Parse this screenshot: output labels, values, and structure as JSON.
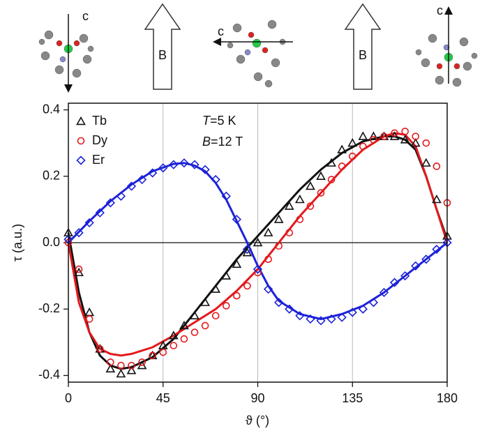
{
  "chart_data": {
    "type": "scatter",
    "xlabel": "ϑ (°)",
    "ylabel": "τ (a.u.)",
    "xlim": [
      0,
      180
    ],
    "ylim": [
      -0.42,
      0.42
    ],
    "xticks": [
      0,
      45,
      90,
      135,
      180
    ],
    "yticks": [
      -0.4,
      -0.2,
      {
        "value": 0,
        "label": "0.0"
      },
      0.2,
      0.4
    ],
    "xgrid": [
      45,
      90,
      135
    ],
    "zero_line": true,
    "legend": "upper left",
    "annotations": [
      {
        "symbol": "T",
        "text": "=5 K"
      },
      {
        "symbol": "B",
        "text": "=12 T"
      }
    ],
    "illustration_labels": [
      "c",
      "B",
      "c",
      "B",
      "c"
    ],
    "series": [
      {
        "name": "Tb",
        "color": "#111111",
        "marker": "triangle",
        "x": [
          0,
          5,
          10,
          15,
          20,
          25,
          30,
          35,
          40,
          45,
          50,
          55,
          60,
          65,
          70,
          75,
          80,
          85,
          90,
          95,
          100,
          105,
          110,
          115,
          120,
          125,
          130,
          135,
          140,
          145,
          150,
          155,
          160,
          165,
          170,
          175,
          180
        ],
        "values": [
          0.03,
          -0.09,
          -0.21,
          -0.32,
          -0.38,
          -0.395,
          -0.385,
          -0.37,
          -0.34,
          -0.31,
          -0.28,
          -0.25,
          -0.22,
          -0.18,
          -0.14,
          -0.1,
          -0.065,
          -0.03,
          0.0,
          0.03,
          0.07,
          0.11,
          0.13,
          0.17,
          0.2,
          0.24,
          0.28,
          0.3,
          0.32,
          0.32,
          0.32,
          0.32,
          0.31,
          0.3,
          0.24,
          0.13,
          0.02
        ],
        "fit": {
          "x": [
            0,
            5,
            10,
            15,
            20,
            25,
            30,
            40,
            50,
            60,
            70,
            80,
            90,
            100,
            110,
            120,
            130,
            140,
            150,
            155,
            160,
            165,
            170,
            175,
            180
          ],
          "values": [
            0.03,
            -0.15,
            -0.27,
            -0.34,
            -0.37,
            -0.38,
            -0.375,
            -0.345,
            -0.29,
            -0.21,
            -0.13,
            -0.05,
            0.02,
            0.09,
            0.16,
            0.22,
            0.27,
            0.305,
            0.32,
            0.32,
            0.31,
            0.28,
            0.2,
            0.1,
            0.01
          ]
        }
      },
      {
        "name": "Dy",
        "color": "#e3191c",
        "marker": "circle",
        "x": [
          0,
          5,
          10,
          15,
          20,
          25,
          30,
          35,
          40,
          45,
          50,
          55,
          60,
          65,
          70,
          75,
          80,
          85,
          90,
          95,
          100,
          105,
          110,
          115,
          120,
          125,
          130,
          135,
          140,
          145,
          150,
          155,
          160,
          165,
          170,
          175,
          180
        ],
        "values": [
          0.0,
          -0.08,
          -0.23,
          -0.32,
          -0.36,
          -0.37,
          -0.37,
          -0.36,
          -0.34,
          -0.33,
          -0.31,
          -0.29,
          -0.27,
          -0.25,
          -0.22,
          -0.19,
          -0.16,
          -0.13,
          -0.09,
          -0.05,
          -0.01,
          0.03,
          0.07,
          0.11,
          0.15,
          0.19,
          0.23,
          0.26,
          0.29,
          0.31,
          0.32,
          0.33,
          0.335,
          0.32,
          0.3,
          0.23,
          0.12
        ],
        "fit": {
          "x": [
            0,
            5,
            10,
            15,
            20,
            25,
            30,
            40,
            50,
            60,
            70,
            80,
            90,
            100,
            110,
            120,
            130,
            140,
            150,
            155,
            160,
            165,
            170,
            175,
            180
          ],
          "values": [
            0.0,
            -0.18,
            -0.27,
            -0.32,
            -0.335,
            -0.34,
            -0.335,
            -0.315,
            -0.28,
            -0.24,
            -0.2,
            -0.145,
            -0.08,
            0.0,
            0.08,
            0.15,
            0.22,
            0.28,
            0.32,
            0.33,
            0.325,
            0.29,
            0.2,
            0.1,
            0.0
          ]
        }
      },
      {
        "name": "Er",
        "color": "#1c22d8",
        "marker": "diamond",
        "x": [
          0,
          5,
          10,
          15,
          20,
          25,
          30,
          35,
          40,
          45,
          50,
          55,
          60,
          65,
          70,
          75,
          80,
          85,
          90,
          95,
          100,
          105,
          110,
          115,
          120,
          125,
          130,
          135,
          140,
          145,
          150,
          155,
          160,
          165,
          170,
          175,
          180
        ],
        "values": [
          0.01,
          0.03,
          0.06,
          0.09,
          0.12,
          0.14,
          0.17,
          0.19,
          0.21,
          0.225,
          0.235,
          0.24,
          0.235,
          0.22,
          0.19,
          0.14,
          0.07,
          -0.02,
          -0.08,
          -0.14,
          -0.18,
          -0.2,
          -0.22,
          -0.23,
          -0.235,
          -0.23,
          -0.225,
          -0.21,
          -0.2,
          -0.18,
          -0.15,
          -0.12,
          -0.1,
          -0.07,
          -0.05,
          -0.02,
          0.0
        ],
        "fit": {
          "x": [
            0,
            10,
            20,
            30,
            40,
            50,
            55,
            60,
            65,
            70,
            75,
            80,
            85,
            90,
            95,
            100,
            110,
            120,
            130,
            140,
            150,
            160,
            170,
            180
          ],
          "values": [
            0.0,
            0.065,
            0.125,
            0.175,
            0.215,
            0.237,
            0.24,
            0.232,
            0.215,
            0.18,
            0.13,
            0.065,
            0.0,
            -0.07,
            -0.13,
            -0.175,
            -0.215,
            -0.23,
            -0.215,
            -0.19,
            -0.15,
            -0.1,
            -0.05,
            0.0
          ]
        }
      }
    ]
  }
}
